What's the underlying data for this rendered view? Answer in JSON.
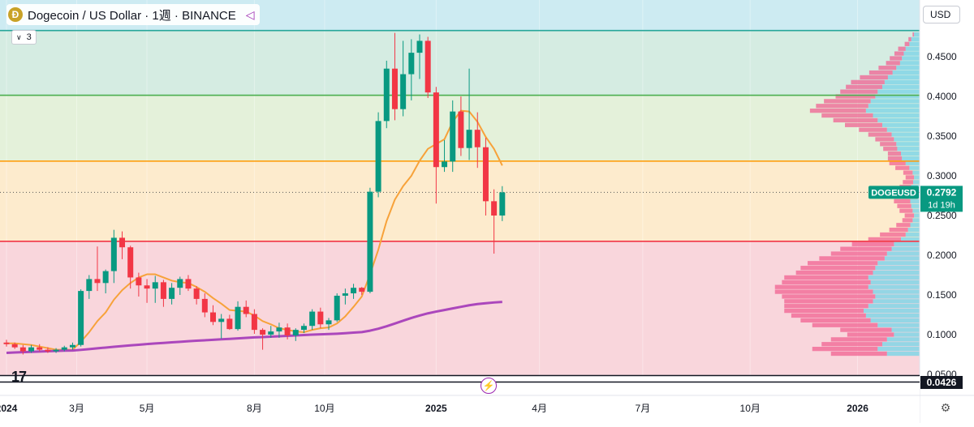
{
  "header": {
    "coin_icon": "dogecoin-icon",
    "title": "Dogecoin / US Dollar · 1週 · BINANCE",
    "share_icon": "share-icon"
  },
  "indicator_collapse": {
    "label": "3",
    "icon": "chevron-down-icon"
  },
  "currency_button": {
    "label": "USD"
  },
  "chart_data": {
    "type": "candlestick",
    "symbol": "DOGEUSD",
    "exchange": "BINANCE",
    "interval": "1週",
    "currency": "USD",
    "ylim": [
      0.05,
      0.48
    ],
    "y_ticks": [
      "0.4500",
      "0.4000",
      "0.3500",
      "0.3000",
      "0.2500",
      "0.2000",
      "0.1500",
      "0.1000",
      "0.0500"
    ],
    "x_ticks": [
      {
        "label": "2024",
        "week": 0,
        "bold": true
      },
      {
        "label": "3月",
        "week": 8.5
      },
      {
        "label": "5月",
        "week": 17
      },
      {
        "label": "8月",
        "week": 30
      },
      {
        "label": "10月",
        "week": 38.5
      },
      {
        "label": "2025",
        "week": 52,
        "bold": true
      },
      {
        "label": "4月",
        "week": 64.5
      },
      {
        "label": "7月",
        "week": 77
      },
      {
        "label": "10月",
        "week": 90
      },
      {
        "label": "2026",
        "week": 103,
        "bold": true
      }
    ],
    "candles": [
      [
        0.09,
        0.0935,
        0.085,
        0.088
      ],
      [
        0.088,
        0.09,
        0.082,
        0.084
      ],
      [
        0.084,
        0.087,
        0.075,
        0.079
      ],
      [
        0.079,
        0.087,
        0.077,
        0.084
      ],
      [
        0.084,
        0.088,
        0.079,
        0.081
      ],
      [
        0.081,
        0.084,
        0.077,
        0.079
      ],
      [
        0.079,
        0.083,
        0.077,
        0.081
      ],
      [
        0.081,
        0.086,
        0.079,
        0.084
      ],
      [
        0.084,
        0.09,
        0.081,
        0.087
      ],
      [
        0.087,
        0.157,
        0.085,
        0.155
      ],
      [
        0.155,
        0.175,
        0.145,
        0.17
      ],
      [
        0.17,
        0.211,
        0.155,
        0.165
      ],
      [
        0.165,
        0.182,
        0.152,
        0.18
      ],
      [
        0.18,
        0.232,
        0.165,
        0.222
      ],
      [
        0.222,
        0.23,
        0.195,
        0.21
      ],
      [
        0.21,
        0.212,
        0.158,
        0.172
      ],
      [
        0.172,
        0.178,
        0.148,
        0.162
      ],
      [
        0.162,
        0.17,
        0.14,
        0.158
      ],
      [
        0.158,
        0.174,
        0.14,
        0.166
      ],
      [
        0.166,
        0.169,
        0.135,
        0.145
      ],
      [
        0.145,
        0.165,
        0.138,
        0.159
      ],
      [
        0.159,
        0.173,
        0.15,
        0.17
      ],
      [
        0.17,
        0.175,
        0.155,
        0.158
      ],
      [
        0.158,
        0.161,
        0.138,
        0.145
      ],
      [
        0.145,
        0.152,
        0.122,
        0.128
      ],
      [
        0.128,
        0.137,
        0.112,
        0.116
      ],
      [
        0.116,
        0.126,
        0.095,
        0.12
      ],
      [
        0.12,
        0.125,
        0.106,
        0.107
      ],
      [
        0.107,
        0.142,
        0.105,
        0.135
      ],
      [
        0.135,
        0.143,
        0.122,
        0.126
      ],
      [
        0.126,
        0.132,
        0.101,
        0.106
      ],
      [
        0.106,
        0.108,
        0.081,
        0.1
      ],
      [
        0.1,
        0.111,
        0.096,
        0.104
      ],
      [
        0.104,
        0.115,
        0.096,
        0.109
      ],
      [
        0.109,
        0.114,
        0.094,
        0.099
      ],
      [
        0.099,
        0.108,
        0.092,
        0.106
      ],
      [
        0.106,
        0.114,
        0.102,
        0.111
      ],
      [
        0.111,
        0.132,
        0.106,
        0.129
      ],
      [
        0.129,
        0.134,
        0.108,
        0.113
      ],
      [
        0.113,
        0.121,
        0.106,
        0.118
      ],
      [
        0.118,
        0.152,
        0.116,
        0.149
      ],
      [
        0.149,
        0.158,
        0.138,
        0.152
      ],
      [
        0.152,
        0.164,
        0.145,
        0.159
      ],
      [
        0.159,
        0.16,
        0.15,
        0.154
      ],
      [
        0.154,
        0.285,
        0.152,
        0.28
      ],
      [
        0.28,
        0.38,
        0.273,
        0.369
      ],
      [
        0.369,
        0.445,
        0.36,
        0.435
      ],
      [
        0.435,
        0.48,
        0.37,
        0.384
      ],
      [
        0.384,
        0.47,
        0.375,
        0.428
      ],
      [
        0.428,
        0.472,
        0.395,
        0.455
      ],
      [
        0.455,
        0.478,
        0.422,
        0.47
      ],
      [
        0.47,
        0.475,
        0.398,
        0.405
      ],
      [
        0.405,
        0.412,
        0.265,
        0.311
      ],
      [
        0.311,
        0.345,
        0.305,
        0.318
      ],
      [
        0.318,
        0.395,
        0.305,
        0.381
      ],
      [
        0.381,
        0.4,
        0.325,
        0.335
      ],
      [
        0.335,
        0.435,
        0.32,
        0.358
      ],
      [
        0.358,
        0.38,
        0.31,
        0.336
      ],
      [
        0.336,
        0.348,
        0.25,
        0.268
      ],
      [
        0.268,
        0.283,
        0.202,
        0.25
      ],
      [
        0.25,
        0.287,
        0.243,
        0.2792
      ]
    ],
    "ma_short": {
      "color": "#f7a23a",
      "values": [
        0.089,
        0.089,
        0.088,
        0.087,
        0.085,
        0.083,
        0.081,
        0.081,
        0.081,
        0.091,
        0.103,
        0.117,
        0.128,
        0.144,
        0.156,
        0.165,
        0.172,
        0.176,
        0.176,
        0.172,
        0.168,
        0.166,
        0.165,
        0.16,
        0.154,
        0.146,
        0.139,
        0.131,
        0.13,
        0.129,
        0.124,
        0.117,
        0.113,
        0.108,
        0.106,
        0.104,
        0.103,
        0.106,
        0.108,
        0.109,
        0.114,
        0.123,
        0.135,
        0.148,
        0.176,
        0.207,
        0.243,
        0.27,
        0.287,
        0.3,
        0.319,
        0.334,
        0.34,
        0.346,
        0.368,
        0.382,
        0.381,
        0.368,
        0.349,
        0.334,
        0.313
      ]
    },
    "ma_long": {
      "color": "#ab47bc",
      "values": [
        0.077,
        0.0775,
        0.0779,
        0.0783,
        0.0787,
        0.0791,
        0.0795,
        0.0798,
        0.08,
        0.0808,
        0.0818,
        0.0828,
        0.0837,
        0.0847,
        0.0856,
        0.0865,
        0.0873,
        0.0881,
        0.0889,
        0.0896,
        0.0903,
        0.091,
        0.0917,
        0.0923,
        0.0929,
        0.0935,
        0.0941,
        0.0947,
        0.0953,
        0.0959,
        0.0965,
        0.097,
        0.0975,
        0.098,
        0.0985,
        0.099,
        0.0995,
        0.1,
        0.1004,
        0.1008,
        0.1012,
        0.1018,
        0.1025,
        0.1032,
        0.105,
        0.1075,
        0.1105,
        0.114,
        0.1175,
        0.121,
        0.124,
        0.1268,
        0.129,
        0.131,
        0.133,
        0.135,
        0.137,
        0.1385,
        0.1395,
        0.1405,
        0.1412
      ]
    },
    "levels": [
      {
        "price": 0.483,
        "color": "#26a69a"
      },
      {
        "price": 0.4015,
        "color": "#4caf50"
      },
      {
        "price": 0.3185,
        "color": "#ff9800"
      },
      {
        "price": 0.2175,
        "color": "#f23645"
      }
    ],
    "zones": [
      {
        "from": 0.483,
        "to": 0.53,
        "color": "#cdebf2"
      },
      {
        "from": 0.4015,
        "to": 0.483,
        "color": "#d5ece2"
      },
      {
        "from": 0.3185,
        "to": 0.4015,
        "color": "#e4f1da"
      },
      {
        "from": 0.2175,
        "to": 0.3185,
        "color": "#fdebcd"
      },
      {
        "from": 0.045,
        "to": 0.2175,
        "color": "#f9d6dc"
      }
    ],
    "last_price": {
      "value": 0.2792,
      "label": "0.2792",
      "symbol_label": "DOGEUSD",
      "countdown": "1d 19h",
      "color": "#089981"
    },
    "bottom_level_label": "0.0426",
    "volume_profile": {
      "buy_color": "#82d6e6",
      "sell_color": "#f06292",
      "bins": [
        [
          0.478,
          0.012,
          0.003
        ],
        [
          0.472,
          0.018,
          0.006
        ],
        [
          0.466,
          0.022,
          0.01
        ],
        [
          0.46,
          0.03,
          0.016
        ],
        [
          0.454,
          0.034,
          0.02
        ],
        [
          0.448,
          0.038,
          0.026
        ],
        [
          0.442,
          0.042,
          0.03
        ],
        [
          0.436,
          0.05,
          0.038
        ],
        [
          0.43,
          0.058,
          0.05
        ],
        [
          0.424,
          0.068,
          0.06
        ],
        [
          0.418,
          0.075,
          0.072
        ],
        [
          0.412,
          0.08,
          0.078
        ],
        [
          0.406,
          0.09,
          0.08
        ],
        [
          0.4,
          0.095,
          0.085
        ],
        [
          0.394,
          0.105,
          0.1
        ],
        [
          0.388,
          0.11,
          0.112
        ],
        [
          0.382,
          0.115,
          0.12
        ],
        [
          0.376,
          0.1,
          0.11
        ],
        [
          0.37,
          0.09,
          0.095
        ],
        [
          0.364,
          0.08,
          0.08
        ],
        [
          0.358,
          0.07,
          0.06
        ],
        [
          0.352,
          0.06,
          0.05
        ],
        [
          0.346,
          0.055,
          0.04
        ],
        [
          0.34,
          0.05,
          0.035
        ],
        [
          0.334,
          0.048,
          0.03
        ],
        [
          0.328,
          0.04,
          0.028
        ],
        [
          0.322,
          0.038,
          0.03
        ],
        [
          0.316,
          0.03,
          0.035
        ],
        [
          0.31,
          0.022,
          0.03
        ],
        [
          0.304,
          0.015,
          0.02
        ],
        [
          0.298,
          0.012,
          0.018
        ],
        [
          0.292,
          0.014,
          0.022
        ],
        [
          0.286,
          0.018,
          0.025
        ],
        [
          0.28,
          0.02,
          0.03
        ],
        [
          0.274,
          0.022,
          0.035
        ],
        [
          0.268,
          0.02,
          0.035
        ],
        [
          0.262,
          0.018,
          0.03
        ],
        [
          0.256,
          0.015,
          0.028
        ],
        [
          0.25,
          0.012,
          0.02
        ],
        [
          0.244,
          0.015,
          0.022
        ],
        [
          0.238,
          0.02,
          0.03
        ],
        [
          0.232,
          0.025,
          0.04
        ],
        [
          0.226,
          0.03,
          0.055
        ],
        [
          0.22,
          0.04,
          0.07
        ],
        [
          0.214,
          0.055,
          0.09
        ],
        [
          0.208,
          0.06,
          0.11
        ],
        [
          0.202,
          0.07,
          0.12
        ],
        [
          0.196,
          0.075,
          0.14
        ],
        [
          0.19,
          0.09,
          0.15
        ],
        [
          0.184,
          0.095,
          0.16
        ],
        [
          0.178,
          0.1,
          0.165
        ],
        [
          0.172,
          0.11,
          0.18
        ],
        [
          0.166,
          0.105,
          0.19
        ],
        [
          0.16,
          0.11,
          0.2
        ],
        [
          0.154,
          0.1,
          0.21
        ],
        [
          0.148,
          0.095,
          0.2
        ],
        [
          0.142,
          0.1,
          0.19
        ],
        [
          0.136,
          0.11,
          0.18
        ],
        [
          0.13,
          0.12,
          0.17
        ],
        [
          0.124,
          0.115,
          0.16
        ],
        [
          0.118,
          0.105,
          0.15
        ],
        [
          0.112,
          0.09,
          0.14
        ],
        [
          0.106,
          0.06,
          0.11
        ],
        [
          0.1,
          0.055,
          0.1
        ],
        [
          0.094,
          0.07,
          0.12
        ],
        [
          0.088,
          0.08,
          0.13
        ],
        [
          0.082,
          0.09,
          0.14
        ],
        [
          0.076,
          0.07,
          0.12
        ]
      ]
    },
    "up_color": "#089981",
    "down_color": "#f23645"
  }
}
